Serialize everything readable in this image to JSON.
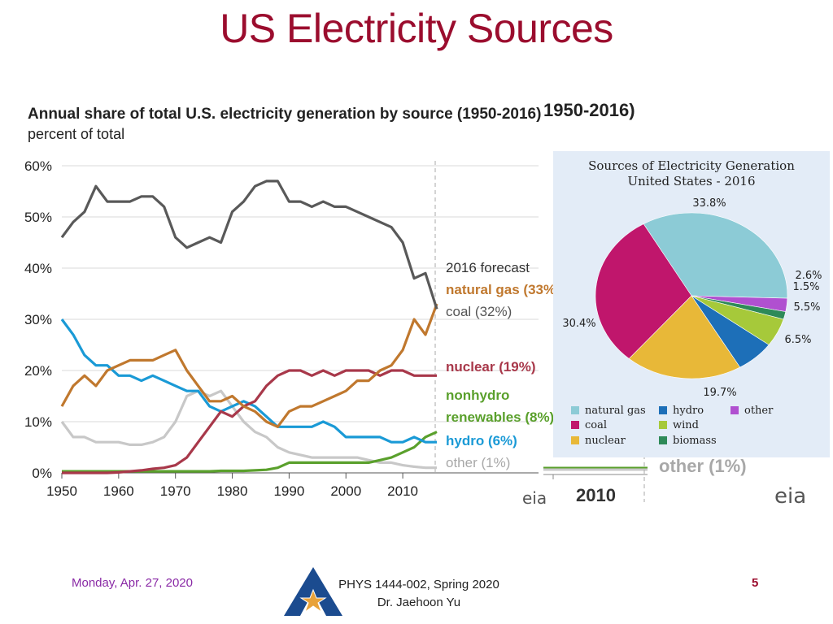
{
  "slide": {
    "title": "US Electricity Sources",
    "footer_date": "Monday, Apr. 27, 2020",
    "footer_course_line1": "PHYS 1444-002, Spring 2020",
    "footer_course_line2": "Dr. Jaehoon Yu",
    "page_number": "5"
  },
  "background_fragments": {
    "title_fragment": "1950-2016)",
    "other_label": "other (1%)",
    "year_label": "2010",
    "eia_logo": "eia"
  },
  "colors": {
    "title": "#9b0d2e",
    "coal": "#595959",
    "natural_gas": "#c0782e",
    "nuclear": "#a8384a",
    "renewables": "#5aa02c",
    "hydro": "#1a9ad6",
    "other": "#c8c8c8"
  },
  "chart_data": [
    {
      "type": "line",
      "title": "Annual share of total U.S. electricity generation by source (1950-2016)",
      "ylabel": "percent of total",
      "x_ticks": [
        "1950",
        "1960",
        "1970",
        "1980",
        "1990",
        "2000",
        "2010"
      ],
      "y_ticks": [
        "0%",
        "10%",
        "20%",
        "30%",
        "40%",
        "50%",
        "60%"
      ],
      "ylim": [
        0,
        60
      ],
      "xlim": [
        1950,
        2016
      ],
      "forecast_label": "2016 forecast",
      "source_logo": "eia",
      "x": [
        1950,
        1952,
        1954,
        1956,
        1958,
        1960,
        1962,
        1964,
        1966,
        1968,
        1970,
        1972,
        1974,
        1976,
        1978,
        1980,
        1982,
        1984,
        1986,
        1988,
        1990,
        1992,
        1994,
        1996,
        1998,
        2000,
        2002,
        2004,
        2006,
        2008,
        2010,
        2012,
        2014,
        2016
      ],
      "series": [
        {
          "name": "coal",
          "label": "coal (32%)",
          "values": [
            46,
            49,
            51,
            56,
            53,
            53,
            53,
            54,
            54,
            52,
            46,
            44,
            45,
            46,
            45,
            51,
            53,
            56,
            57,
            57,
            53,
            53,
            52,
            53,
            52,
            52,
            51,
            50,
            49,
            48,
            45,
            38,
            39,
            32
          ]
        },
        {
          "name": "natural gas",
          "label": "natural gas (33%)",
          "values": [
            13,
            17,
            19,
            17,
            20,
            21,
            22,
            22,
            22,
            23,
            24,
            20,
            17,
            14,
            14,
            15,
            13,
            12,
            10,
            9,
            12,
            13,
            13,
            14,
            15,
            16,
            18,
            18,
            20,
            21,
            24,
            30,
            27,
            33
          ]
        },
        {
          "name": "nuclear",
          "label": "nuclear (19%)",
          "values": [
            0,
            0,
            0,
            0,
            0,
            0.1,
            0.3,
            0.5,
            0.8,
            1,
            1.5,
            3,
            6,
            9,
            12,
            11,
            13,
            14,
            17,
            19,
            20,
            20,
            19,
            20,
            19,
            20,
            20,
            20,
            19,
            20,
            20,
            19,
            19,
            19
          ]
        },
        {
          "name": "nonhydro renewables",
          "label": "nonhydro renewables (8%)",
          "values": [
            0.3,
            0.3,
            0.3,
            0.3,
            0.3,
            0.3,
            0.3,
            0.3,
            0.3,
            0.3,
            0.3,
            0.3,
            0.3,
            0.3,
            0.4,
            0.4,
            0.4,
            0.5,
            0.6,
            1,
            2,
            2,
            2,
            2,
            2,
            2,
            2,
            2,
            2.5,
            3,
            4,
            5,
            7,
            8
          ]
        },
        {
          "name": "hydro",
          "label": "hydro (6%)",
          "values": [
            30,
            27,
            23,
            21,
            21,
            19,
            19,
            18,
            19,
            18,
            17,
            16,
            16,
            13,
            12,
            13,
            14,
            13,
            11,
            9,
            9,
            9,
            9,
            10,
            9,
            7,
            7,
            7,
            7,
            6,
            6,
            7,
            6,
            6
          ]
        },
        {
          "name": "other",
          "label": "other (1%)",
          "values": [
            10,
            7,
            7,
            6,
            6,
            6,
            5.5,
            5.5,
            6,
            7,
            10,
            15,
            16,
            15,
            16,
            13,
            10,
            8,
            7,
            5,
            4,
            3.5,
            3,
            3,
            3,
            3,
            3,
            2.5,
            2,
            2,
            1.5,
            1.2,
            1,
            1
          ]
        }
      ],
      "right_labels": {
        "natural_gas": "natural gas (33%)",
        "coal": "coal (32%)",
        "nuclear": "nuclear (19%)",
        "renewables_line1": "nonhydro",
        "renewables_line2": "renewables (8%)",
        "hydro": "hydro (6%)",
        "other": "other (1%)"
      }
    },
    {
      "type": "pie",
      "title_line1": "Sources of Electricity Generation",
      "title_line2": "United States - 2016",
      "slices": [
        {
          "name": "natural gas",
          "value": 33.8,
          "label": "33.8%",
          "color": "#8ccbd6"
        },
        {
          "name": "other",
          "value": 2.6,
          "label": "2.6%",
          "color": "#b050d0"
        },
        {
          "name": "biomass",
          "value": 1.5,
          "label": "1.5%",
          "color": "#2e8a58"
        },
        {
          "name": "wind",
          "value": 5.5,
          "label": "5.5%",
          "color": "#a6c93a"
        },
        {
          "name": "hydro",
          "value": 6.5,
          "label": "6.5%",
          "color": "#1d6fb8"
        },
        {
          "name": "nuclear",
          "value": 19.7,
          "label": "19.7%",
          "color": "#e8b838"
        },
        {
          "name": "coal",
          "value": 30.4,
          "label": "30.4%",
          "color": "#c0166c"
        }
      ],
      "legend": [
        {
          "name": "natural gas",
          "color": "#8ccbd6"
        },
        {
          "name": "hydro",
          "color": "#1d6fb8"
        },
        {
          "name": "other",
          "color": "#b050d0"
        },
        {
          "name": "coal",
          "color": "#c0166c"
        },
        {
          "name": "wind",
          "color": "#a6c93a"
        },
        {
          "name": "nuclear",
          "color": "#e8b838"
        },
        {
          "name": "biomass",
          "color": "#2e8a58"
        }
      ]
    }
  ]
}
